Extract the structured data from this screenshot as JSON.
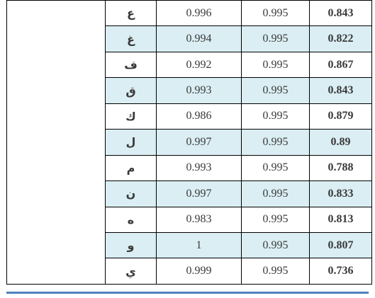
{
  "table": {
    "rows": [
      {
        "letter": "ع",
        "v1": "0.996",
        "v2": "0.995",
        "v3": "0.843"
      },
      {
        "letter": "غ",
        "v1": "0.994",
        "v2": "0.995",
        "v3": "0.822"
      },
      {
        "letter": "ف",
        "v1": "0.992",
        "v2": "0.995",
        "v3": "0.867"
      },
      {
        "letter": "ق",
        "v1": "0.993",
        "v2": "0.995",
        "v3": "0.843"
      },
      {
        "letter": "ك",
        "v1": "0.986",
        "v2": "0.995",
        "v3": "0.879"
      },
      {
        "letter": "ل",
        "v1": "0.997",
        "v2": "0.995",
        "v3": "0.89"
      },
      {
        "letter": "م",
        "v1": "0.993",
        "v2": "0.995",
        "v3": "0.788"
      },
      {
        "letter": "ن",
        "v1": "0.997",
        "v2": "0.995",
        "v3": "0.833"
      },
      {
        "letter": "ه",
        "v1": "0.983",
        "v2": "0.995",
        "v3": "0.813"
      },
      {
        "letter": "و",
        "v1": "1",
        "v2": "0.995",
        "v3": "0.807"
      },
      {
        "letter": "ي",
        "v1": "0.999",
        "v2": "0.995",
        "v3": "0.736"
      }
    ]
  },
  "colors": {
    "row_shading": "#daeef3",
    "bottom_rule": "#4f81bd"
  }
}
